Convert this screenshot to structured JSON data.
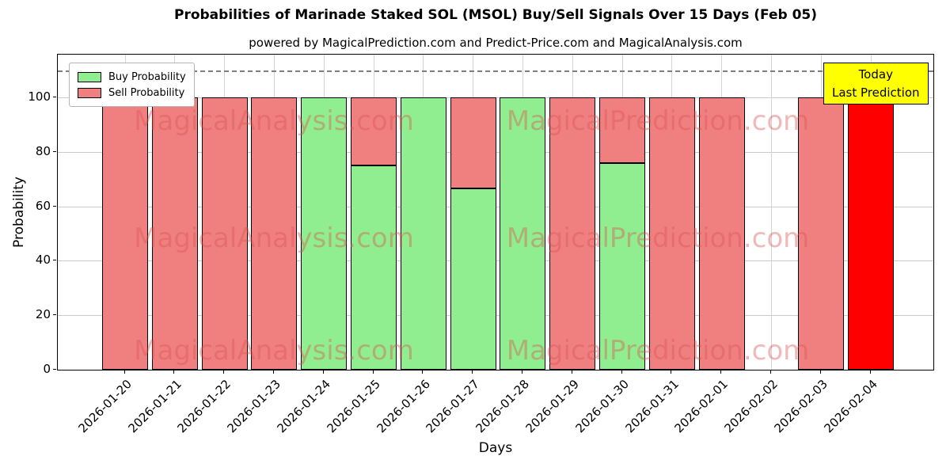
{
  "figure": {
    "title": "Probabilities of Marinade Staked SOL (MSOL) Buy/Sell Signals Over 15 Days (Feb 05)",
    "subtitle": "powered by MagicalPrediction.com and Predict-Price.com and MagicalAnalysis.com"
  },
  "axes": {
    "xlabel": "Days",
    "ylabel": "Probability"
  },
  "legend": {
    "items": [
      {
        "label": "Buy Probability",
        "color": "#90ee90"
      },
      {
        "label": "Sell Probability",
        "color": "#f08080"
      }
    ]
  },
  "annotation": {
    "line1": "Today",
    "line2": "Last Prediction",
    "bg_color": "#ffff00"
  },
  "watermarks": {
    "left": "MagicalAnalysis.com",
    "right": "MagicalPrediction.com"
  },
  "chart_data": {
    "type": "bar",
    "stacked": true,
    "title": "Probabilities of Marinade Staked SOL (MSOL) Buy/Sell Signals Over 15 Days (Feb 05)",
    "xlabel": "Days",
    "ylabel": "Probability",
    "ylim": [
      0,
      116
    ],
    "yticks": [
      0,
      20,
      40,
      60,
      80,
      100
    ],
    "grid": true,
    "dashed_line_y": 110,
    "bar_edge_color": "#000000",
    "categories": [
      "2026-01-20",
      "2026-01-21",
      "2026-01-22",
      "2026-01-23",
      "2026-01-24",
      "2026-01-25",
      "2026-01-26",
      "2026-01-27",
      "2026-01-28",
      "2026-01-29",
      "2026-01-30",
      "2026-01-31",
      "2026-02-01",
      "2026-02-02",
      "2026-02-03",
      "2026-02-04"
    ],
    "series": [
      {
        "name": "Buy Probability",
        "color": "#90ee90",
        "values": [
          0,
          0,
          0,
          0,
          100,
          75,
          100,
          66.7,
          100,
          0,
          76,
          0,
          0,
          0,
          0,
          0
        ]
      },
      {
        "name": "Sell Probability",
        "color": "#f08080",
        "values": [
          100,
          100,
          100,
          100,
          0,
          25,
          0,
          33.3,
          0,
          100,
          24,
          100,
          100,
          0,
          100,
          0
        ]
      },
      {
        "name": "Today / Last Prediction",
        "color": "#ff0000",
        "values": [
          0,
          0,
          0,
          0,
          0,
          0,
          0,
          0,
          0,
          0,
          0,
          0,
          0,
          0,
          0,
          100
        ]
      }
    ]
  }
}
